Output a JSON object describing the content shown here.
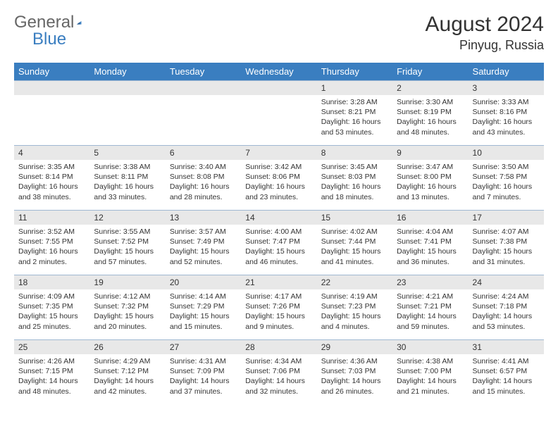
{
  "logo": {
    "text_general": "General",
    "text_blue": "Blue",
    "triangle_color": "#3a7ec0"
  },
  "header": {
    "month_title": "August 2024",
    "location": "Pinyug, Russia"
  },
  "colors": {
    "header_bg": "#3a7ec0",
    "header_text": "#ffffff",
    "daynum_bg": "#e8e8e8",
    "cell_border": "#9fb8d2",
    "body_text": "#333333",
    "page_bg": "#ffffff"
  },
  "weekdays": [
    "Sunday",
    "Monday",
    "Tuesday",
    "Wednesday",
    "Thursday",
    "Friday",
    "Saturday"
  ],
  "weeks": [
    [
      {
        "empty": true
      },
      {
        "empty": true
      },
      {
        "empty": true
      },
      {
        "empty": true
      },
      {
        "day": "1",
        "sunrise": "Sunrise: 3:28 AM",
        "sunset": "Sunset: 8:21 PM",
        "daylight": "Daylight: 16 hours and 53 minutes."
      },
      {
        "day": "2",
        "sunrise": "Sunrise: 3:30 AM",
        "sunset": "Sunset: 8:19 PM",
        "daylight": "Daylight: 16 hours and 48 minutes."
      },
      {
        "day": "3",
        "sunrise": "Sunrise: 3:33 AM",
        "sunset": "Sunset: 8:16 PM",
        "daylight": "Daylight: 16 hours and 43 minutes."
      }
    ],
    [
      {
        "day": "4",
        "sunrise": "Sunrise: 3:35 AM",
        "sunset": "Sunset: 8:14 PM",
        "daylight": "Daylight: 16 hours and 38 minutes."
      },
      {
        "day": "5",
        "sunrise": "Sunrise: 3:38 AM",
        "sunset": "Sunset: 8:11 PM",
        "daylight": "Daylight: 16 hours and 33 minutes."
      },
      {
        "day": "6",
        "sunrise": "Sunrise: 3:40 AM",
        "sunset": "Sunset: 8:08 PM",
        "daylight": "Daylight: 16 hours and 28 minutes."
      },
      {
        "day": "7",
        "sunrise": "Sunrise: 3:42 AM",
        "sunset": "Sunset: 8:06 PM",
        "daylight": "Daylight: 16 hours and 23 minutes."
      },
      {
        "day": "8",
        "sunrise": "Sunrise: 3:45 AM",
        "sunset": "Sunset: 8:03 PM",
        "daylight": "Daylight: 16 hours and 18 minutes."
      },
      {
        "day": "9",
        "sunrise": "Sunrise: 3:47 AM",
        "sunset": "Sunset: 8:00 PM",
        "daylight": "Daylight: 16 hours and 13 minutes."
      },
      {
        "day": "10",
        "sunrise": "Sunrise: 3:50 AM",
        "sunset": "Sunset: 7:58 PM",
        "daylight": "Daylight: 16 hours and 7 minutes."
      }
    ],
    [
      {
        "day": "11",
        "sunrise": "Sunrise: 3:52 AM",
        "sunset": "Sunset: 7:55 PM",
        "daylight": "Daylight: 16 hours and 2 minutes."
      },
      {
        "day": "12",
        "sunrise": "Sunrise: 3:55 AM",
        "sunset": "Sunset: 7:52 PM",
        "daylight": "Daylight: 15 hours and 57 minutes."
      },
      {
        "day": "13",
        "sunrise": "Sunrise: 3:57 AM",
        "sunset": "Sunset: 7:49 PM",
        "daylight": "Daylight: 15 hours and 52 minutes."
      },
      {
        "day": "14",
        "sunrise": "Sunrise: 4:00 AM",
        "sunset": "Sunset: 7:47 PM",
        "daylight": "Daylight: 15 hours and 46 minutes."
      },
      {
        "day": "15",
        "sunrise": "Sunrise: 4:02 AM",
        "sunset": "Sunset: 7:44 PM",
        "daylight": "Daylight: 15 hours and 41 minutes."
      },
      {
        "day": "16",
        "sunrise": "Sunrise: 4:04 AM",
        "sunset": "Sunset: 7:41 PM",
        "daylight": "Daylight: 15 hours and 36 minutes."
      },
      {
        "day": "17",
        "sunrise": "Sunrise: 4:07 AM",
        "sunset": "Sunset: 7:38 PM",
        "daylight": "Daylight: 15 hours and 31 minutes."
      }
    ],
    [
      {
        "day": "18",
        "sunrise": "Sunrise: 4:09 AM",
        "sunset": "Sunset: 7:35 PM",
        "daylight": "Daylight: 15 hours and 25 minutes."
      },
      {
        "day": "19",
        "sunrise": "Sunrise: 4:12 AM",
        "sunset": "Sunset: 7:32 PM",
        "daylight": "Daylight: 15 hours and 20 minutes."
      },
      {
        "day": "20",
        "sunrise": "Sunrise: 4:14 AM",
        "sunset": "Sunset: 7:29 PM",
        "daylight": "Daylight: 15 hours and 15 minutes."
      },
      {
        "day": "21",
        "sunrise": "Sunrise: 4:17 AM",
        "sunset": "Sunset: 7:26 PM",
        "daylight": "Daylight: 15 hours and 9 minutes."
      },
      {
        "day": "22",
        "sunrise": "Sunrise: 4:19 AM",
        "sunset": "Sunset: 7:23 PM",
        "daylight": "Daylight: 15 hours and 4 minutes."
      },
      {
        "day": "23",
        "sunrise": "Sunrise: 4:21 AM",
        "sunset": "Sunset: 7:21 PM",
        "daylight": "Daylight: 14 hours and 59 minutes."
      },
      {
        "day": "24",
        "sunrise": "Sunrise: 4:24 AM",
        "sunset": "Sunset: 7:18 PM",
        "daylight": "Daylight: 14 hours and 53 minutes."
      }
    ],
    [
      {
        "day": "25",
        "sunrise": "Sunrise: 4:26 AM",
        "sunset": "Sunset: 7:15 PM",
        "daylight": "Daylight: 14 hours and 48 minutes."
      },
      {
        "day": "26",
        "sunrise": "Sunrise: 4:29 AM",
        "sunset": "Sunset: 7:12 PM",
        "daylight": "Daylight: 14 hours and 42 minutes."
      },
      {
        "day": "27",
        "sunrise": "Sunrise: 4:31 AM",
        "sunset": "Sunset: 7:09 PM",
        "daylight": "Daylight: 14 hours and 37 minutes."
      },
      {
        "day": "28",
        "sunrise": "Sunrise: 4:34 AM",
        "sunset": "Sunset: 7:06 PM",
        "daylight": "Daylight: 14 hours and 32 minutes."
      },
      {
        "day": "29",
        "sunrise": "Sunrise: 4:36 AM",
        "sunset": "Sunset: 7:03 PM",
        "daylight": "Daylight: 14 hours and 26 minutes."
      },
      {
        "day": "30",
        "sunrise": "Sunrise: 4:38 AM",
        "sunset": "Sunset: 7:00 PM",
        "daylight": "Daylight: 14 hours and 21 minutes."
      },
      {
        "day": "31",
        "sunrise": "Sunrise: 4:41 AM",
        "sunset": "Sunset: 6:57 PM",
        "daylight": "Daylight: 14 hours and 15 minutes."
      }
    ]
  ]
}
